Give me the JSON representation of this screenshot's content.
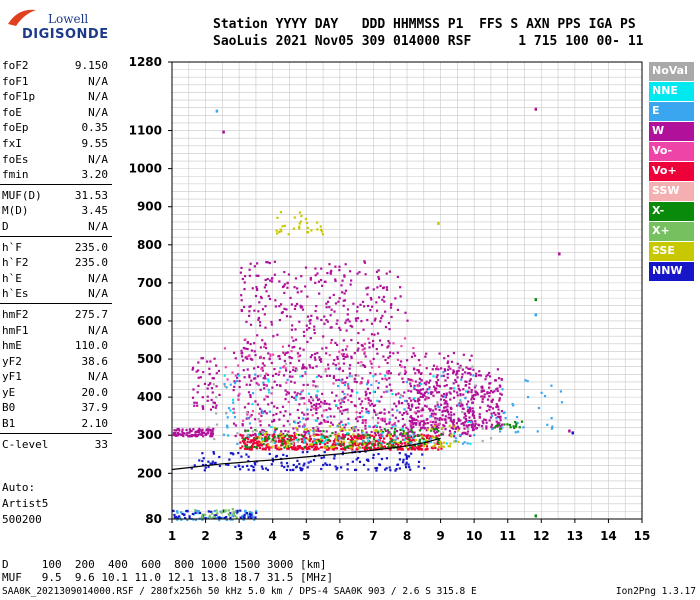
{
  "logo": {
    "line1": "Lowell",
    "line2": "DIGISONDE"
  },
  "header": {
    "line1": "Station YYYY DAY   DDD HHMMSS P1  FFS S AXN PPS IGA PS",
    "line2": "SaoLuis 2021 Nov05 309 014000 RSF      1 715 100 00- 11"
  },
  "params": [
    {
      "k": "foF2",
      "v": "9.150"
    },
    {
      "k": "foF1",
      "v": "N/A"
    },
    {
      "k": "foF1p",
      "v": "N/A"
    },
    {
      "k": "foE",
      "v": "N/A"
    },
    {
      "k": "foEp",
      "v": "0.35"
    },
    {
      "k": "fxI",
      "v": "9.55"
    },
    {
      "k": "foEs",
      "v": "N/A"
    },
    {
      "k": "fmin",
      "v": "3.20"
    },
    {
      "k": "MUF(D)",
      "v": "31.53"
    },
    {
      "k": "M(D)",
      "v": "3.45"
    },
    {
      "k": "D",
      "v": "N/A"
    },
    {
      "k": "h`F",
      "v": "235.0"
    },
    {
      "k": "h`F2",
      "v": "235.0"
    },
    {
      "k": "h`E",
      "v": "N/A"
    },
    {
      "k": "h`Es",
      "v": "N/A"
    },
    {
      "k": "hmF2",
      "v": "275.7"
    },
    {
      "k": "hmF1",
      "v": "N/A"
    },
    {
      "k": "hmE",
      "v": "110.0"
    },
    {
      "k": "yF2",
      "v": "38.6"
    },
    {
      "k": "yF1",
      "v": "N/A"
    },
    {
      "k": "yE",
      "v": "20.0"
    },
    {
      "k": "B0",
      "v": "37.9"
    },
    {
      "k": "B1",
      "v": "2.10"
    },
    {
      "k": "C-level",
      "v": "33"
    }
  ],
  "auto": {
    "l1": "Auto:",
    "l2": "Artist5",
    "l3": "500200"
  },
  "legend": [
    {
      "label": "NoVal",
      "color": "#a9a9a9"
    },
    {
      "label": "NNE",
      "color": "#00e8f0"
    },
    {
      "label": "E",
      "color": "#3aa6f0"
    },
    {
      "label": "W",
      "color": "#b0109a"
    },
    {
      "label": "Vo-",
      "color": "#ee44a8"
    },
    {
      "label": "Vo+",
      "color": "#ee0038"
    },
    {
      "label": "SSW",
      "color": "#f4b0b0"
    },
    {
      "label": "X-",
      "color": "#0a8a0a"
    },
    {
      "label": "X+",
      "color": "#76c060"
    },
    {
      "label": "SSE",
      "color": "#c8c800"
    },
    {
      "label": "NNW",
      "color": "#1616c8"
    }
  ],
  "dtable": {
    "l1": "D     100  200  400  600  800 1000 1500 3000 [km]",
    "l2": "MUF   9.5  9.6 10.1 11.0 12.1 13.8 18.7 31.5 [MHz]"
  },
  "footer": {
    "text": "SAA0K_2021309014000.RSF / 280fx256h 50 kHz 5.0 km / DPS-4 SAA0K 903 / 2.6 S 315.8 E",
    "version": "Ion2Png 1.3.17"
  },
  "chart_data": {
    "type": "scatter",
    "xlim": [
      1,
      15
    ],
    "ylim": [
      80,
      1280
    ],
    "x_ticks": [
      1,
      2,
      3,
      4,
      5,
      6,
      7,
      8,
      9,
      10,
      11,
      12,
      13,
      14,
      15
    ],
    "y_ticks": [
      80,
      200,
      300,
      400,
      500,
      600,
      700,
      800,
      900,
      1000,
      1100,
      1280
    ],
    "grid": true,
    "trace_curve": {
      "x": [
        1.0,
        1.5,
        2.0,
        2.5,
        3.0,
        3.5,
        4.0,
        4.5,
        5.0,
        5.5,
        6.0,
        6.5,
        7.0,
        7.5,
        8.0,
        8.5,
        9.0
      ],
      "y": [
        210,
        215,
        220,
        225,
        228,
        232,
        235,
        239,
        243,
        247,
        251,
        256,
        261,
        266,
        272,
        280,
        292
      ]
    },
    "clusters": [
      {
        "x": [
          1.0,
          2.2
        ],
        "y": [
          300,
          320
        ],
        "color": "#b0109a",
        "n": 90
      },
      {
        "x": [
          1.5,
          2.4
        ],
        "y": [
          370,
          510
        ],
        "color": "#b0109a",
        "n": 50
      },
      {
        "x": [
          2.8,
          10.0
        ],
        "y": [
          300,
          520
        ],
        "color": "#b0109a",
        "n": 650
      },
      {
        "x": [
          8.0,
          10.8
        ],
        "y": [
          320,
          480
        ],
        "color": "#b0109a",
        "n": 350
      },
      {
        "x": [
          3.0,
          9.0
        ],
        "y": [
          265,
          305
        ],
        "color": "#ee0038",
        "n": 500
      },
      {
        "x": [
          3.0,
          7.5
        ],
        "y": [
          500,
          760
        ],
        "color": "#b0109a",
        "n": 280
      },
      {
        "x": [
          3.0,
          8.0
        ],
        "y": [
          600,
          730
        ],
        "color": "#b0109a",
        "n": 70
      },
      {
        "x": [
          1.5,
          8.5
        ],
        "y": [
          210,
          260
        ],
        "color": "#1616c8",
        "n": 160
      },
      {
        "x": [
          3.0,
          9.0
        ],
        "y": [
          270,
          320
        ],
        "color": "#0a8a0a",
        "n": 140
      },
      {
        "x": [
          3.5,
          9.5
        ],
        "y": [
          270,
          330
        ],
        "color": "#c8c800",
        "n": 110
      },
      {
        "x": [
          2.5,
          10.0
        ],
        "y": [
          280,
          480
        ],
        "color": "#3aa6f0",
        "n": 110
      },
      {
        "x": [
          2.5,
          10.0
        ],
        "y": [
          280,
          460
        ],
        "color": "#00e8f0",
        "n": 60
      },
      {
        "x": [
          2.5,
          9.0
        ],
        "y": [
          330,
          560
        ],
        "color": "#ee44a8",
        "n": 120
      },
      {
        "x": [
          4.0,
          5.5
        ],
        "y": [
          830,
          890
        ],
        "color": "#c8c800",
        "n": 30
      },
      {
        "x": [
          1.0,
          3.5
        ],
        "y": [
          80,
          105
        ],
        "color": "#3aa6f0",
        "n": 60
      },
      {
        "x": [
          1.0,
          3.5
        ],
        "y": [
          85,
          105
        ],
        "color": "#1616c8",
        "n": 50
      },
      {
        "x": [
          1.5,
          3.0
        ],
        "y": [
          85,
          110
        ],
        "color": "#76c060",
        "n": 25
      },
      {
        "x": [
          10.5,
          12.6
        ],
        "y": [
          310,
          450
        ],
        "color": "#3aa6f0",
        "n": 30
      },
      {
        "x": [
          10.5,
          11.5
        ],
        "y": [
          320,
          340
        ],
        "color": "#0a8a0a",
        "n": 15
      },
      {
        "x": [
          2.0,
          10.5
        ],
        "y": [
          280,
          500
        ],
        "color": "#a9a9a9",
        "n": 60
      }
    ],
    "isolated_points": [
      {
        "x": 2.3,
        "y": 1155,
        "color": "#3aa6f0"
      },
      {
        "x": 2.5,
        "y": 1100,
        "color": "#b0109a"
      },
      {
        "x": 11.8,
        "y": 1160,
        "color": "#b0109a"
      },
      {
        "x": 11.8,
        "y": 660,
        "color": "#0a8a0a"
      },
      {
        "x": 11.8,
        "y": 620,
        "color": "#3aa6f0"
      },
      {
        "x": 12.5,
        "y": 780,
        "color": "#b0109a"
      },
      {
        "x": 11.8,
        "y": 92,
        "color": "#0a8a0a"
      },
      {
        "x": 12.8,
        "y": 315,
        "color": "#b0109a"
      },
      {
        "x": 12.9,
        "y": 310,
        "color": "#1616c8"
      },
      {
        "x": 8.9,
        "y": 860,
        "color": "#c8c800"
      }
    ]
  }
}
